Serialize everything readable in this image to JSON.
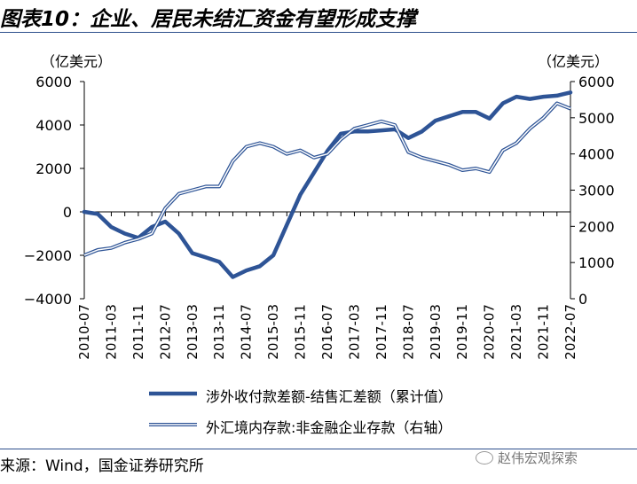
{
  "page": {
    "title": "图表10：企业、居民未结汇资金有望形成支撑",
    "source": "来源：Wind，国金证券研究所",
    "watermark": "赵伟宏观探索"
  },
  "chart_data": {
    "type": "line",
    "left_unit": "（亿美元）",
    "right_unit": "（亿美元）",
    "y_left": {
      "ticks": [
        -4000,
        -2000,
        0,
        2000,
        4000,
        6000
      ],
      "range": [
        -4000,
        6000
      ]
    },
    "y_right": {
      "ticks": [
        0,
        1000,
        2000,
        3000,
        4000,
        5000,
        6000
      ],
      "range": [
        0,
        6000
      ]
    },
    "x_ticks": [
      "2010-07",
      "2011-03",
      "2011-11",
      "2012-07",
      "2013-03",
      "2013-11",
      "2014-07",
      "2015-03",
      "2015-11",
      "2016-07",
      "2017-03",
      "2017-11",
      "2018-07",
      "2019-03",
      "2019-11",
      "2020-07",
      "2021-03",
      "2021-11",
      "2022-07"
    ],
    "grid": false,
    "legend_position": "bottom",
    "series": [
      {
        "name": "涉外收付款差额-结售汇差额（累计值）",
        "axis": "left",
        "color": "#2e5496",
        "style": "solid-thick",
        "x": [
          "2010-07",
          "2010-11",
          "2011-03",
          "2011-07",
          "2011-11",
          "2012-03",
          "2012-07",
          "2012-11",
          "2013-03",
          "2013-07",
          "2013-11",
          "2014-03",
          "2014-07",
          "2014-11",
          "2015-03",
          "2015-07",
          "2015-11",
          "2016-03",
          "2016-07",
          "2016-11",
          "2017-03",
          "2017-07",
          "2017-11",
          "2018-03",
          "2018-07",
          "2018-11",
          "2019-03",
          "2019-07",
          "2019-11",
          "2020-03",
          "2020-07",
          "2020-11",
          "2021-03",
          "2021-07",
          "2021-11",
          "2022-03",
          "2022-07"
        ],
        "values": [
          0,
          -100,
          -700,
          -1000,
          -1200,
          -700,
          -450,
          -1000,
          -1900,
          -2100,
          -2300,
          -3000,
          -2700,
          -2500,
          -2000,
          -600,
          800,
          1800,
          2800,
          3600,
          3700,
          3700,
          3750,
          3800,
          3400,
          3700,
          4200,
          4400,
          4600,
          4600,
          4300,
          5000,
          5300,
          5200,
          5300,
          5350,
          5500
        ]
      },
      {
        "name": "外汇境内存款:非金融企业存款（右轴）",
        "axis": "right",
        "color": "#2e5496",
        "style": "double",
        "x": [
          "2010-07",
          "2010-11",
          "2011-03",
          "2011-07",
          "2011-11",
          "2012-03",
          "2012-07",
          "2012-11",
          "2013-03",
          "2013-07",
          "2013-11",
          "2014-03",
          "2014-07",
          "2014-11",
          "2015-03",
          "2015-07",
          "2015-11",
          "2016-03",
          "2016-07",
          "2016-11",
          "2017-03",
          "2017-07",
          "2017-11",
          "2018-03",
          "2018-07",
          "2018-11",
          "2019-03",
          "2019-07",
          "2019-11",
          "2020-03",
          "2020-07",
          "2020-11",
          "2021-03",
          "2021-07",
          "2021-11",
          "2022-03",
          "2022-07"
        ],
        "values": [
          1200,
          1350,
          1400,
          1550,
          1650,
          1800,
          2500,
          2900,
          3000,
          3100,
          3100,
          3800,
          4200,
          4300,
          4200,
          4000,
          4100,
          3900,
          4000,
          4400,
          4700,
          4800,
          4900,
          4800,
          4050,
          3900,
          3800,
          3700,
          3550,
          3600,
          3500,
          4100,
          4300,
          4700,
          5000,
          5400,
          5250
        ]
      }
    ]
  }
}
